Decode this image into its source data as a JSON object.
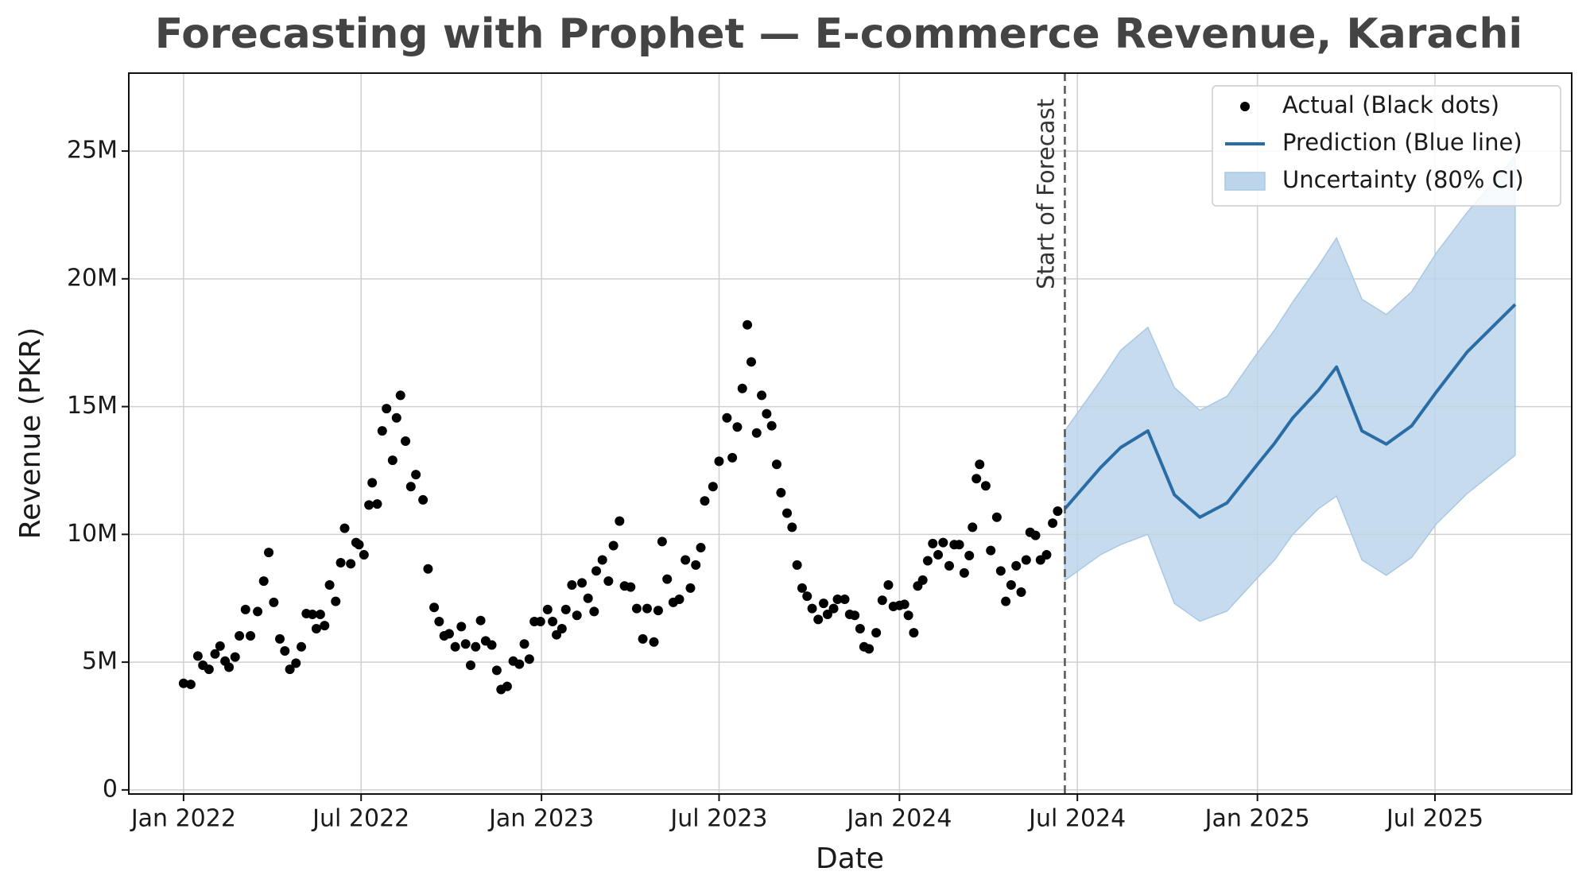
{
  "chart_data": {
    "type": "line",
    "title": "Forecasting with Prophet — E-commerce Revenue, Karachi",
    "x_label": "Date",
    "y_label": "Revenue (PKR)",
    "annotation": "Start of Forecast",
    "forecast_start": 2024.462,
    "xlim": [
      2021.847,
      2025.878
    ],
    "ylim": [
      -160000,
      28050000
    ],
    "xticks": [
      {
        "value": 2022,
        "label": "Jan 2022"
      },
      {
        "value": 2022.496,
        "label": "Jul 2022"
      },
      {
        "value": 2023,
        "label": "Jan 2023"
      },
      {
        "value": 2023.496,
        "label": "Jul 2023"
      },
      {
        "value": 2024,
        "label": "Jan 2024"
      },
      {
        "value": 2024.497,
        "label": "Jul 2024"
      },
      {
        "value": 2025,
        "label": "Jan 2025"
      },
      {
        "value": 2025.496,
        "label": "Jul 2025"
      }
    ],
    "yticks": [
      0,
      {
        "value": 5000000,
        "label": "5M"
      },
      {
        "value": 10000000,
        "label": "10M"
      },
      {
        "value": 15000000,
        "label": "15M"
      },
      {
        "value": 20000000,
        "label": "20M"
      },
      {
        "value": 25000000,
        "label": "25M"
      }
    ],
    "grid": true,
    "legend": "upper right",
    "series": [
      {
        "name": "Actual (Black dots)",
        "type": "scatter",
        "color": "#000000",
        "x": [
          2022.0,
          2022.02,
          2022.04,
          2022.054,
          2022.071,
          2022.088,
          2022.102,
          2022.116,
          2022.127,
          2022.144,
          2022.156,
          2022.173,
          2022.187,
          2022.207,
          2022.224,
          2022.238,
          2022.252,
          2022.269,
          2022.283,
          2022.297,
          2022.314,
          2022.329,
          2022.343,
          2022.36,
          2022.371,
          2022.382,
          2022.394,
          2022.408,
          2022.425,
          2022.439,
          2022.45,
          2022.467,
          2022.482,
          2022.49,
          2022.504,
          2022.518,
          2022.527,
          2022.541,
          2022.555,
          2022.567,
          2022.584,
          2022.595,
          2022.606,
          2022.62,
          2022.635,
          2022.649,
          2022.669,
          2022.683,
          2022.7,
          2022.714,
          2022.728,
          2022.742,
          2022.759,
          2022.776,
          2022.788,
          2022.802,
          2022.816,
          2022.83,
          2022.844,
          2022.861,
          2022.875,
          2022.887,
          2022.904,
          2022.921,
          2022.938,
          2022.952,
          2022.966,
          2022.98,
          2022.997,
          2023.017,
          2023.031,
          2023.042,
          2023.057,
          2023.068,
          2023.085,
          2023.099,
          2023.113,
          2023.13,
          2023.147,
          2023.153,
          2023.17,
          2023.187,
          2023.201,
          2023.218,
          2023.232,
          2023.249,
          2023.266,
          2023.283,
          2023.295,
          2023.314,
          2023.326,
          2023.337,
          2023.351,
          2023.368,
          2023.385,
          2023.402,
          2023.416,
          2023.431,
          2023.445,
          2023.456,
          2023.479,
          2023.496,
          2023.518,
          2023.533,
          2023.547,
          2023.561,
          2023.575,
          2023.586,
          2023.601,
          2023.615,
          2023.629,
          2023.643,
          2023.657,
          2023.669,
          2023.686,
          2023.7,
          2023.714,
          2023.728,
          2023.742,
          2023.756,
          2023.773,
          2023.788,
          2023.799,
          2023.816,
          2023.827,
          2023.847,
          2023.861,
          2023.875,
          2023.89,
          2023.901,
          2023.915,
          2023.935,
          2023.952,
          2023.969,
          2023.983,
          2024.0,
          2024.014,
          2024.025,
          2024.04,
          2024.051,
          2024.065,
          2024.079,
          2024.093,
          2024.108,
          2024.122,
          2024.139,
          2024.153,
          2024.167,
          2024.181,
          2024.195,
          2024.204,
          2024.215,
          2024.224,
          2024.241,
          2024.255,
          2024.272,
          2024.283,
          2024.297,
          2024.312,
          2024.326,
          2024.34,
          2024.354,
          2024.365,
          2024.38,
          2024.394,
          2024.411,
          2024.428,
          2024.442
        ],
        "values": [
          4170000,
          4130000,
          5240000,
          4880000,
          4720000,
          5320000,
          5630000,
          5040000,
          4800000,
          5200000,
          6030000,
          7060000,
          6030000,
          6980000,
          8170000,
          9290000,
          7340000,
          5910000,
          5440000,
          4720000,
          4960000,
          5600000,
          6900000,
          6870000,
          6310000,
          6870000,
          6430000,
          8020000,
          7380000,
          8890000,
          10240000,
          8850000,
          9680000,
          9600000,
          9200000,
          11150000,
          12020000,
          11190000,
          14050000,
          14920000,
          12900000,
          14560000,
          15440000,
          13650000,
          11870000,
          12340000,
          11350000,
          8650000,
          7140000,
          6590000,
          6030000,
          6110000,
          5600000,
          6390000,
          5710000,
          4880000,
          5600000,
          6630000,
          5830000,
          5670000,
          4680000,
          3930000,
          4050000,
          5040000,
          4920000,
          5710000,
          5120000,
          6590000,
          6590000,
          7060000,
          6590000,
          6070000,
          6310000,
          7060000,
          8020000,
          6830000,
          8100000,
          7500000,
          6980000,
          8570000,
          9000000,
          8170000,
          9560000,
          10520000,
          7980000,
          7940000,
          7100000,
          5910000,
          7100000,
          5790000,
          7020000,
          9720000,
          8250000,
          7340000,
          7460000,
          9000000,
          7900000,
          8800000,
          9480000,
          11310000,
          11870000,
          12860000,
          14560000,
          13000000,
          14200000,
          15710000,
          18200000,
          16750000,
          13970000,
          15440000,
          14720000,
          14250000,
          12740000,
          11630000,
          10830000,
          10280000,
          8800000,
          7900000,
          7580000,
          7100000,
          6670000,
          7300000,
          6870000,
          7100000,
          7460000,
          7460000,
          6870000,
          6830000,
          6310000,
          5600000,
          5520000,
          6150000,
          7420000,
          8020000,
          7180000,
          7220000,
          7260000,
          6830000,
          6150000,
          7980000,
          8210000,
          8970000,
          9640000,
          9200000,
          9680000,
          8770000,
          9600000,
          9600000,
          8490000,
          9170000,
          10280000,
          12180000,
          12740000,
          11900000,
          9370000,
          10670000,
          8570000,
          7380000,
          8020000,
          8770000,
          7740000,
          9000000,
          10080000,
          9960000,
          9000000,
          9200000,
          10440000,
          10910000
        ]
      },
      {
        "name": "Prediction (Blue line)",
        "type": "line",
        "color": "#2a6ca6",
        "x": [
          2024.462,
          2024.561,
          2024.618,
          2024.694,
          2024.768,
          2024.839,
          2024.915,
          2025.0,
          2025.048,
          2025.099,
          2025.17,
          2025.221,
          2025.292,
          2025.36,
          2025.431,
          2025.499,
          2025.586,
          2025.72
        ],
        "values": [
          11000000,
          12600000,
          13400000,
          14050000,
          11550000,
          10670000,
          11230000,
          12740000,
          13570000,
          14560000,
          15630000,
          16550000,
          14050000,
          13530000,
          14250000,
          15560000,
          17140000,
          19000000
        ]
      },
      {
        "name": "Uncertainty (80% CI)",
        "type": "band",
        "color": "#bcd5ea",
        "x": [
          2024.462,
          2024.561,
          2024.618,
          2024.694,
          2024.768,
          2024.839,
          2024.915,
          2025.0,
          2025.048,
          2025.099,
          2025.17,
          2025.221,
          2025.292,
          2025.36,
          2025.431,
          2025.499,
          2025.586,
          2025.72
        ],
        "lower": [
          8200000,
          9200000,
          9600000,
          10000000,
          7300000,
          6600000,
          7000000,
          8300000,
          9000000,
          10000000,
          11000000,
          11500000,
          9000000,
          8400000,
          9100000,
          10400000,
          11600000,
          13100000
        ],
        "upper": [
          14050000,
          16000000,
          17200000,
          18100000,
          15750000,
          14850000,
          15400000,
          17100000,
          18000000,
          19100000,
          20500000,
          21600000,
          19200000,
          18600000,
          19500000,
          21000000,
          22600000,
          24800000
        ]
      }
    ]
  }
}
